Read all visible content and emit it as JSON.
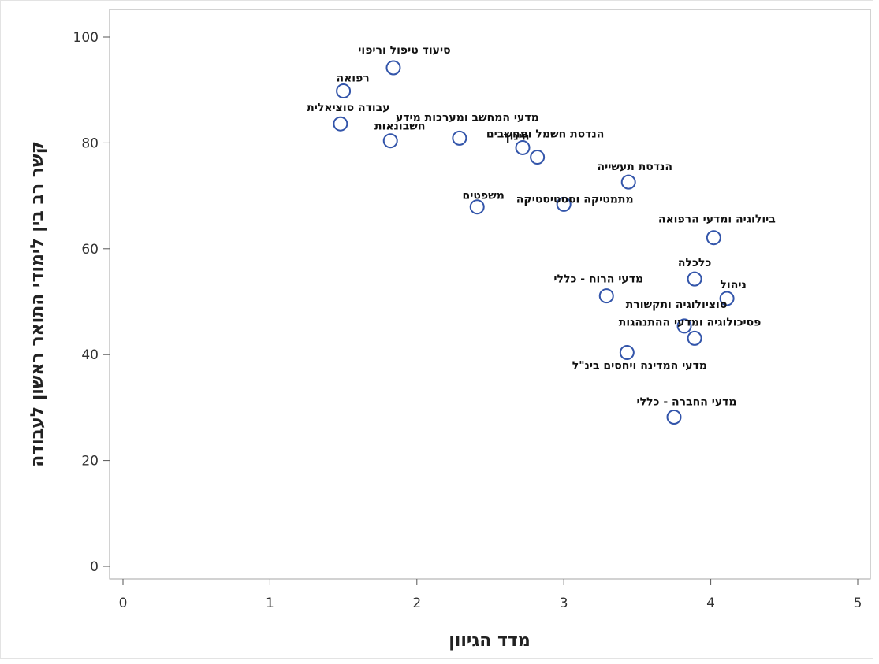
{
  "chart_data": {
    "type": "scatter",
    "title": "",
    "xlabel": "מדד הגיוון",
    "ylabel": "קשר רב בין לימודי התואר ראשון לעבודה",
    "xlim": [
      0,
      5
    ],
    "ylim": [
      0,
      100
    ],
    "xticks": [
      "0",
      "1",
      "2",
      "3",
      "4",
      "5"
    ],
    "yticks": [
      "0",
      "20",
      "40",
      "60",
      "80",
      "100"
    ],
    "grid": false,
    "legend": "none",
    "marker_color": "#3355AA",
    "points": [
      {
        "label": "סיעוד טיפול וריפוי",
        "x": 1.84,
        "y": 94.2
      },
      {
        "label": "רפואה",
        "x": 1.5,
        "y": 89.8
      },
      {
        "label": "עבודה סוציאלית",
        "x": 1.48,
        "y": 83.6
      },
      {
        "label": "חשבונאות",
        "x": 1.82,
        "y": 80.4
      },
      {
        "label": "מדעי המחשב ומערכות מידע",
        "x": 2.29,
        "y": 80.9
      },
      {
        "label": "חינוך",
        "x": 2.72,
        "y": 79.1
      },
      {
        "label": "הנדסת חשמל ומחשבים",
        "x": 2.82,
        "y": 77.3
      },
      {
        "label": "הנדסת תעשייה",
        "x": 3.44,
        "y": 72.6
      },
      {
        "label": "משפטים",
        "x": 2.41,
        "y": 67.9
      },
      {
        "label": "מתמטיקה וסטטיסטיקה",
        "x": 3.0,
        "y": 68.4
      },
      {
        "label": "ביולוגיה ומדעי הרפואה",
        "x": 4.02,
        "y": 62.1
      },
      {
        "label": "כלכלה",
        "x": 3.89,
        "y": 54.3
      },
      {
        "label": "ניהול",
        "x": 4.11,
        "y": 50.6
      },
      {
        "label": "מדעי הרוח - כללי",
        "x": 3.29,
        "y": 51.1
      },
      {
        "label": "סוציולוגיה ותקשורת",
        "x": 3.82,
        "y": 45.4
      },
      {
        "label": "פסיכולוגיה ומדעי ההתנהגות",
        "x": 3.89,
        "y": 43.1
      },
      {
        "label": "מדעי המדינה ויחסים בינ\"ל",
        "x": 3.43,
        "y": 40.4
      },
      {
        "label": "מדעי החברה - כללי",
        "x": 3.75,
        "y": 28.2
      }
    ]
  }
}
